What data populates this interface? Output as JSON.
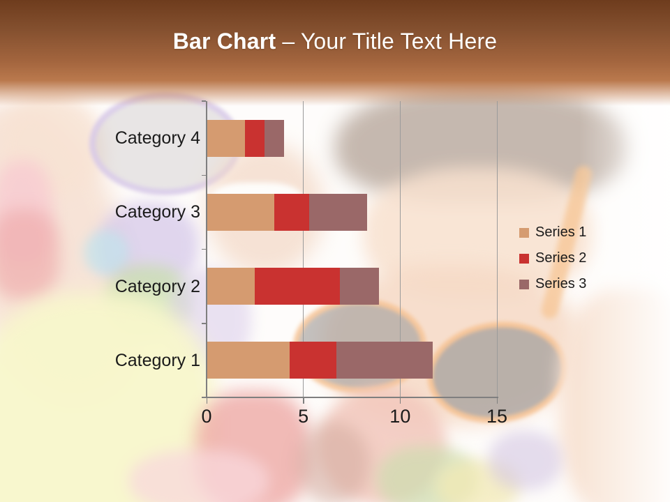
{
  "slide": {
    "title": {
      "bold": "Bar Chart",
      "rest": "– Your Title Text Here"
    },
    "colors": {
      "band_top": "#6e3c1d",
      "band_bottom": "#bd7b4e",
      "title_text": "#ffffff",
      "axis": "#7f7f7f",
      "gridline": "#9b9b9b",
      "label_text": "#1a1a1a"
    }
  },
  "chart_data": {
    "type": "bar",
    "orientation": "horizontal",
    "stacked": true,
    "grid": true,
    "legend_position": "right",
    "categories": [
      "Category 1",
      "Category 2",
      "Category 3",
      "Category 4"
    ],
    "series": [
      {
        "name": "Series 1",
        "color": "#D59B70",
        "values": [
          4.3,
          2.5,
          3.5,
          2
        ]
      },
      {
        "name": "Series 2",
        "color": "#C93230",
        "values": [
          2.4,
          4.4,
          1.8,
          1
        ]
      },
      {
        "name": "Series 3",
        "color": "#9A6868",
        "values": [
          5.0,
          2.0,
          3.0,
          1
        ]
      }
    ],
    "x_ticks": [
      0,
      5,
      10,
      15
    ],
    "xlim": [
      0,
      15
    ],
    "xlabel": "",
    "ylabel": ""
  }
}
